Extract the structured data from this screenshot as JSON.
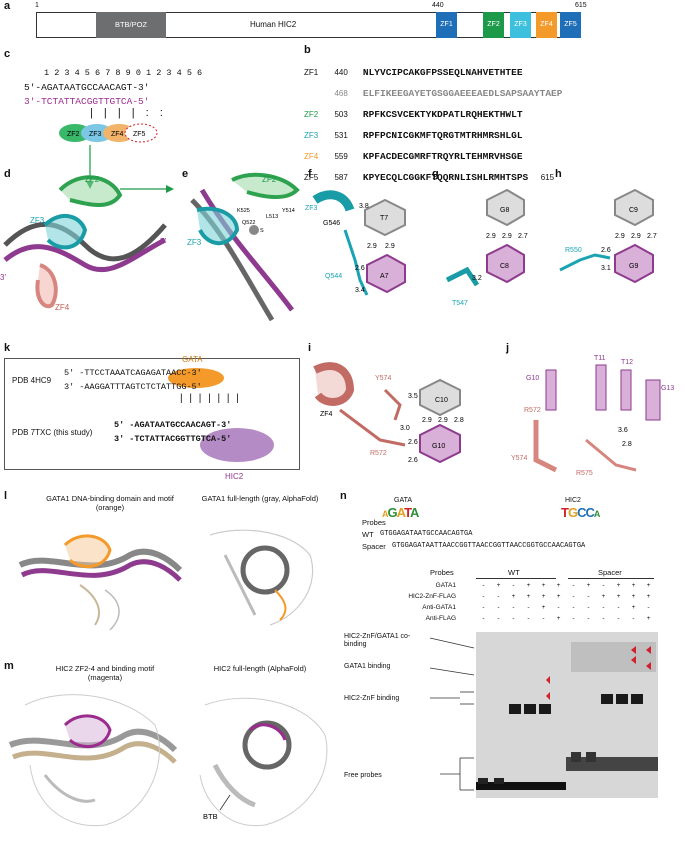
{
  "panel_labels": {
    "a": "a",
    "b": "b",
    "c": "c",
    "d": "d",
    "e": "e",
    "f": "f",
    "g": "g",
    "h": "h",
    "i": "i",
    "j": "j",
    "k": "k",
    "l": "l",
    "m": "m",
    "n": "n"
  },
  "panel_a": {
    "start": "1",
    "mid": "440",
    "end": "615",
    "btb": "BTB/POZ",
    "hic2": "Human HIC2",
    "zf": [
      "ZF1",
      "ZF2",
      "ZF3",
      "ZF4",
      "ZF5"
    ],
    "colors": {
      "btb": "#6d6e70",
      "zf1": "#1f6fb8",
      "zf2": "#1c9a4a",
      "zf3": "#3cc0de",
      "zf4": "#f39a2a",
      "zf5": "#1f6fb8"
    }
  },
  "panel_b": {
    "rows": [
      {
        "name": "ZF1",
        "num": "440",
        "seq": "NLYVCIPCAKGFPSSEQLNAHVETHTEE",
        "end": ""
      },
      {
        "name": "",
        "num": "468",
        "seq": "ELFIKEEGAYETGSGGAEEEAEDLSAPSAAYTAEP",
        "end": ""
      },
      {
        "name": "ZF2",
        "num": "503",
        "seq": "RPFKCSVCEKTYKDPATLRQHEKTHWLT",
        "end": ""
      },
      {
        "name": "ZF3",
        "num": "531",
        "seq": "RPFPCNICGKMFTQRGTMTRHMRSHLGL",
        "end": ""
      },
      {
        "name": "ZF4",
        "num": "559",
        "seq": "KPFACDECGMRFTRQYRLTEHMRVHSGE",
        "end": ""
      },
      {
        "name": "ZF5",
        "num": "587",
        "seq": "KPYECQLCGGKFTQQRNLISHLRMHTSPS",
        "end": "615"
      }
    ]
  },
  "panel_c": {
    "numbers": "1 2 3 4 5 6 7 8 9 0 1 2 3 4 5 6",
    "top_strand": "5′-AGATAATGCCAACAGT-3′",
    "bottom_strand": "3′-TCTATTACGGTTGTCA-5′",
    "zfs": [
      "ZF2",
      "ZF3",
      "ZF4",
      "ZF5"
    ]
  },
  "panel_d": {
    "zf2": "ZF2",
    "zf3": "ZF3",
    "zf4": "ZF4",
    "p5": "5′",
    "p3": "3′"
  },
  "panel_e": {
    "zf2": "ZF2",
    "zf3": "ZF3",
    "res": [
      "K525",
      "Y514",
      "Q522",
      "L513",
      "S"
    ]
  },
  "panel_f": {
    "res1": "ZF3",
    "res2": "G546",
    "res3": "Q544",
    "b1": "T7",
    "b2": "A7",
    "d": [
      "3.8",
      "2.9",
      "2.9",
      "2.6",
      "3.4"
    ]
  },
  "panel_g": {
    "b1": "G8",
    "b2": "C8",
    "res": "T547",
    "d": [
      "2.9",
      "2.9",
      "2.7",
      "3.2"
    ]
  },
  "panel_h": {
    "b1": "C9",
    "b2": "G9",
    "res": "R550",
    "d": [
      "2.9",
      "2.9",
      "2.7",
      "2.6",
      "3.1"
    ]
  },
  "panel_i": {
    "zf": "ZF4",
    "r1": "Y574",
    "r2": "R572",
    "b1": "C10",
    "b2": "G10",
    "d": [
      "3.5",
      "2.9",
      "2.9",
      "2.8",
      "3.0",
      "2.6",
      "2.6"
    ]
  },
  "panel_j": {
    "b": [
      "G10",
      "T11",
      "T12",
      "G13"
    ],
    "r": [
      "R572",
      "Y574",
      "R575"
    ],
    "d": [
      "3.6",
      "2.8"
    ]
  },
  "panel_k": {
    "gata": "GATA",
    "hic2": "HIC2",
    "pdb1": "PDB 4HC9",
    "pdb2": "PDB 7TXC (this study)",
    "s1a": "5′ -TTCCTAAATCAGAGATAACC-3′",
    "s1b": "3′ -AAGGATTTAGTCTCTATTGG-5′",
    "s2a": "5′ -AGATAATGCCAACAGT-3′",
    "s2b": "3′ -TCTATTACGGTTGTCA-5′"
  },
  "panel_l": {
    "t1": "GATA1 DNA-binding domain and motif (orange)",
    "t2": "GATA1 full-length (gray, AlphaFold)"
  },
  "panel_m": {
    "t1": "HIC2 ZF2-4 and binding motif (magenta)",
    "t2": "HIC2 full-length (AlphaFold)",
    "btb": "BTB"
  },
  "panel_n": {
    "probes": "Probes",
    "gata": "GATA",
    "hic2": "HIC2",
    "wt": "WT",
    "wt_seq": "GTGGAGATAATGCCAACAGTGA",
    "spacer": "Spacer",
    "spacer_seq": "GTGGAGATAATTAACCGGTTAACCGGTTAACCGGTGCCAACAGTGA",
    "hdr_probes": "Probes",
    "hdr_wt": "WT",
    "hdr_spacer": "Spacer",
    "rows": [
      {
        "label": "GATA1",
        "vals": [
          "-",
          "+",
          "-",
          "+",
          "+",
          "+",
          "-",
          "+",
          "-",
          "+",
          "+",
          "+"
        ]
      },
      {
        "label": "HIC2-ZnF-FLAG",
        "vals": [
          "-",
          "-",
          "+",
          "+",
          "+",
          "+",
          "-",
          "-",
          "+",
          "+",
          "+",
          "+"
        ]
      },
      {
        "label": "Anti-GATA1",
        "vals": [
          "-",
          "-",
          "-",
          "-",
          "+",
          "-",
          "-",
          "-",
          "-",
          "-",
          "+",
          "-"
        ]
      },
      {
        "label": "Anti-FLAG",
        "vals": [
          "-",
          "-",
          "-",
          "-",
          "-",
          "+",
          "-",
          "-",
          "-",
          "-",
          "-",
          "+"
        ]
      }
    ],
    "annots": [
      "HIC2-ZnF/GATA1 co-binding",
      "GATA1 binding",
      "HIC2-ZnF binding",
      "Free probes"
    ]
  }
}
